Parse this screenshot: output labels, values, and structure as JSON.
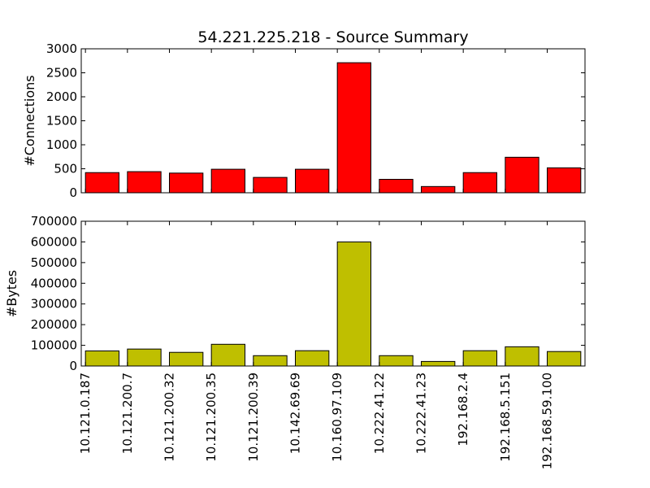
{
  "chart_data": [
    {
      "type": "bar",
      "title": "54.221.225.218 - Source Summary",
      "xlabel": "",
      "ylabel": "#Connections",
      "categories": [
        "10.121.0.187",
        "10.121.200.7",
        "10.121.200.32",
        "10.121.200.35",
        "10.121.200.39",
        "10.142.69.69",
        "10.160.97.109",
        "10.222.41.22",
        "10.222.41.23",
        "192.168.2.4",
        "192.168.5.151",
        "192.168.59.100"
      ],
      "values": [
        420,
        440,
        410,
        490,
        320,
        490,
        2710,
        280,
        130,
        420,
        740,
        520
      ],
      "ylim": [
        0,
        3000
      ],
      "yticks": [
        "0",
        "500",
        "1000",
        "1500",
        "2000",
        "2500",
        "3000"
      ],
      "color": "#ff0000",
      "grid": false
    },
    {
      "type": "bar",
      "title": "",
      "xlabel": "",
      "ylabel": "#Bytes",
      "categories": [
        "10.121.0.187",
        "10.121.200.7",
        "10.121.200.32",
        "10.121.200.35",
        "10.121.200.39",
        "10.142.69.69",
        "10.160.97.109",
        "10.222.41.22",
        "10.222.41.23",
        "192.168.2.4",
        "192.168.5.151",
        "192.168.59.100"
      ],
      "values": [
        73000,
        82000,
        66000,
        105000,
        50000,
        74000,
        600000,
        50000,
        22000,
        74000,
        93000,
        70000
      ],
      "ylim": [
        0,
        700000
      ],
      "yticks": [
        "0",
        "100000",
        "200000",
        "300000",
        "400000",
        "500000",
        "600000",
        "700000"
      ],
      "color": "#bfbf00",
      "grid": false
    }
  ]
}
